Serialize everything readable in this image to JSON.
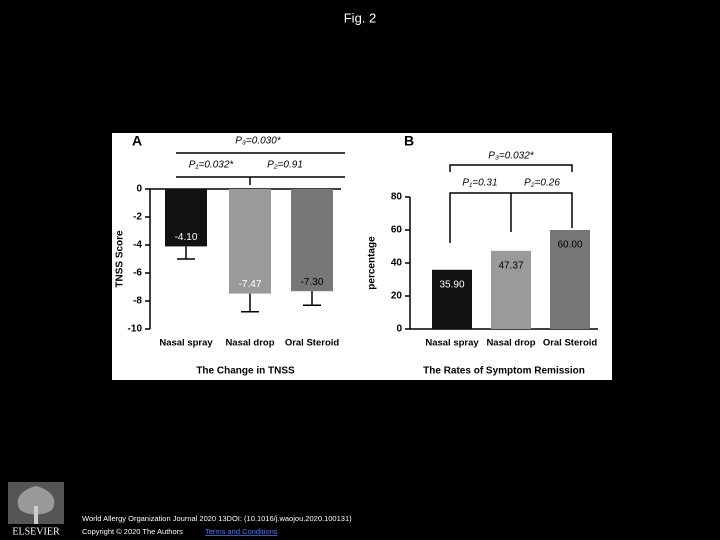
{
  "slide_title": "Fig. 2",
  "chart_data": [
    {
      "type": "bar",
      "panel": "A",
      "categories": [
        "Nasal spray",
        "Nasal drop",
        "Oral Steroid"
      ],
      "values": [
        -4.1,
        -7.47,
        -7.3
      ],
      "value_labels": [
        "-4.10",
        "-7.47",
        "-7.30"
      ],
      "errors": [
        0.9,
        1.3,
        1.0
      ],
      "colors": [
        "#111111",
        "#9a9a9a",
        "#777777"
      ],
      "ylabel": "TNSS Score",
      "xlabel": "The Change in TNSS",
      "ylim": [
        -10,
        0
      ],
      "yticks": [
        0,
        -2,
        -4,
        -6,
        -8,
        -10
      ],
      "annotations": [
        "P₃=0.030*",
        "P₁=0.032*",
        "P₂=0.91"
      ]
    },
    {
      "type": "bar",
      "panel": "B",
      "categories": [
        "Nasal spray",
        "Nasal drop",
        "Oral Steroid"
      ],
      "values": [
        35.9,
        47.37,
        60.0
      ],
      "value_labels": [
        "35.90",
        "47.37",
        "60.00"
      ],
      "colors": [
        "#111111",
        "#9a9a9a",
        "#777777"
      ],
      "ylabel": "percentage",
      "xlabel": "The Rates of Symptom Remission",
      "ylim": [
        0,
        80
      ],
      "yticks": [
        0,
        20,
        40,
        60,
        80
      ],
      "annotations": [
        "P₃=0.032*",
        "P₁=0.31",
        "P₂=0.26"
      ]
    }
  ],
  "footer": {
    "citation": "World Allergy Organization Journal 2020 13DOI: (10.1016/j.waojou.2020.100131)",
    "copyright": "Copyright © 2020 The Authors",
    "link": "Terms and Conditions",
    "logo": "ELSEVIER"
  }
}
